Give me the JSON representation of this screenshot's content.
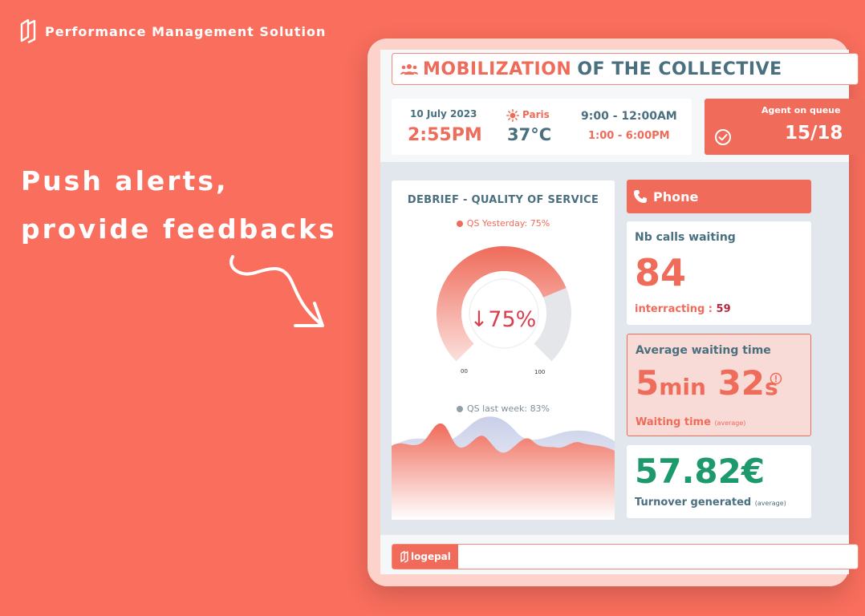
{
  "brand": {
    "name": "Performance Management Solution",
    "logo_icon": "logepal-mark-icon"
  },
  "headline": {
    "line1": "Push alerts,",
    "line2": "provide feedbacks"
  },
  "dashboard": {
    "title_red": "MOBILIZATION",
    "title_dark": "OF THE COLLECTIVE",
    "info": {
      "date": "10 July 2023",
      "time": "2:55PM",
      "city": "Paris",
      "temperature": "37°C",
      "hours_morning": "9:00 - 12:00AM",
      "hours_afternoon": "1:00 - 6:00PM"
    },
    "agent": {
      "label": "Agent on queue",
      "value": "15/18"
    },
    "quality": {
      "title": "DEBRIEF - QUALITY OF SERVICE",
      "yesterday": "QS Yesterday: 75%",
      "value": "↓75%",
      "value_fraction": 0.75,
      "tick_min": "00",
      "tick_max": "100",
      "last_week": "QS last week: 83%"
    },
    "phone": {
      "label": "Phone"
    },
    "calls_waiting": {
      "label": "Nb calls waiting",
      "value": "84",
      "interacting_label": "interracting :",
      "interacting_value": "59"
    },
    "waiting_time": {
      "label": "Average waiting time",
      "minutes": "5",
      "min_unit": "min",
      "seconds": "32",
      "sec_unit": "s",
      "sub_label": "Waiting time",
      "sub_note": "(average)"
    },
    "turnover": {
      "value": "57.82€",
      "label": "Turnover generated",
      "note": "(average)"
    },
    "footer": {
      "logo": "logepal"
    }
  },
  "colors": {
    "background": "#f96e5d",
    "accent": "#ef6b5a",
    "dark_teal": "#4a6f7f",
    "green": "#1d9a6c",
    "alert_red": "#d9404f"
  }
}
